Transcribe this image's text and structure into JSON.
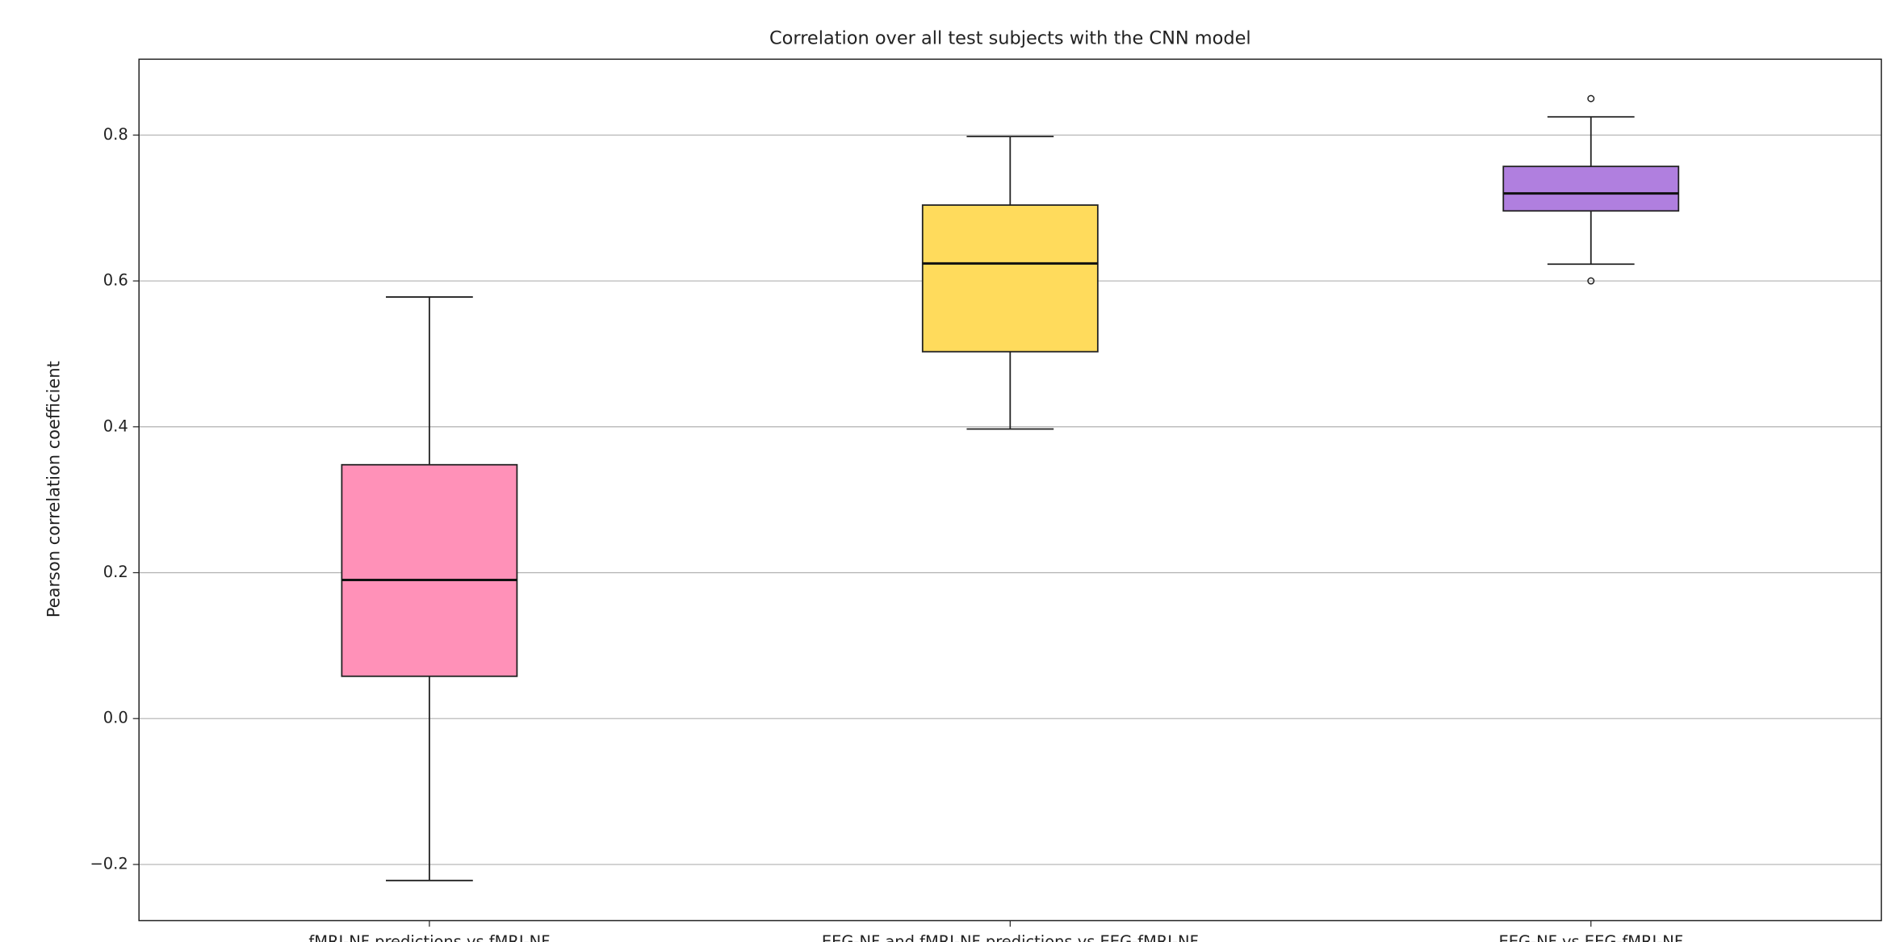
{
  "chart_data": {
    "type": "box",
    "title": "Correlation over all test subjects with the CNN model",
    "y_label": "Pearson correlation coefficient",
    "categories": [
      "fMRI-NF predictions vs fMRI-NF",
      "EEG-NF and fMRI-NF predictions vs EEG-fMRI-NF",
      "EEG-NF vs EEG-fMRI-NF"
    ],
    "colors": [
      "#ff91b8",
      "#ffdb5c",
      "#b07fdf"
    ],
    "boxes": [
      {
        "whisker_low": -0.222,
        "q1": 0.058,
        "median": 0.19,
        "q3": 0.348,
        "whisker_high": 0.578,
        "outliers": []
      },
      {
        "whisker_low": 0.397,
        "q1": 0.503,
        "median": 0.624,
        "q3": 0.704,
        "whisker_high": 0.798,
        "outliers": []
      },
      {
        "whisker_low": 0.623,
        "q1": 0.696,
        "median": 0.72,
        "q3": 0.757,
        "whisker_high": 0.825,
        "outliers": [
          0.85,
          0.6
        ]
      }
    ],
    "ylim": [
      -0.277,
      0.904
    ],
    "yticks": [
      {
        "value": -0.2,
        "label": "−0.2"
      },
      {
        "value": 0,
        "label": "0.0"
      },
      0.2,
      0.4,
      0.6,
      0.8
    ],
    "grid": true
  }
}
